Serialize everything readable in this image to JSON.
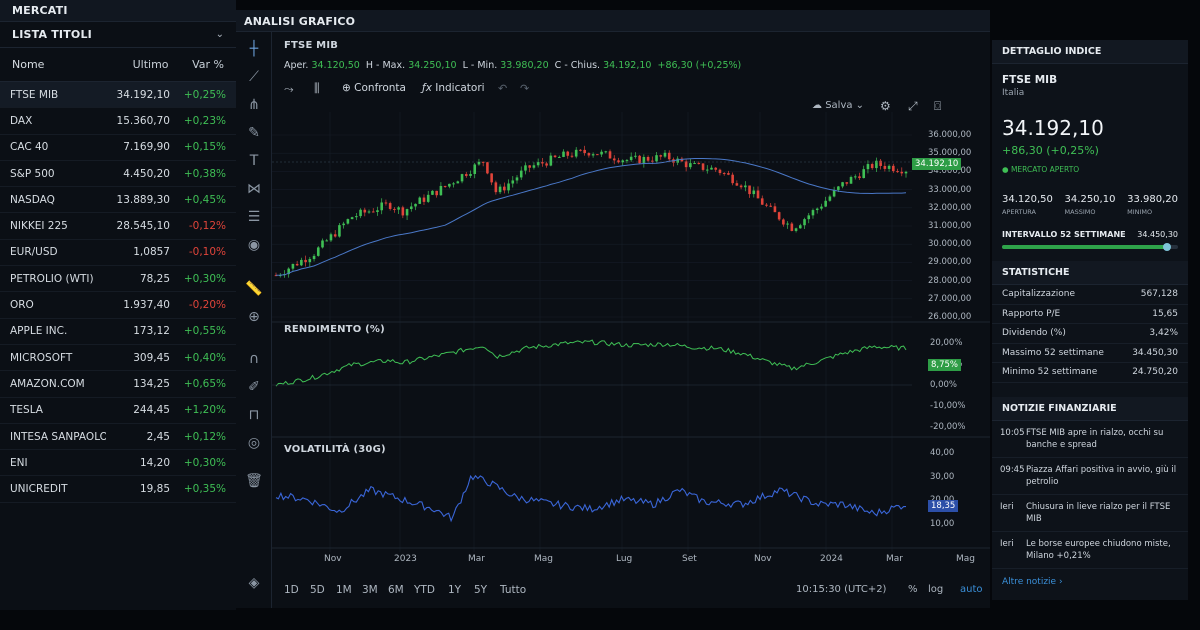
{
  "left": {
    "title": "MERCATI",
    "list_title": "LISTA TITOLI",
    "columns": [
      "Nome",
      "Ultimo",
      "Var %"
    ],
    "rows": [
      {
        "name": "FTSE MIB",
        "last": "34.192,10",
        "chg": "+0,25%",
        "dir": "pos"
      },
      {
        "name": "DAX",
        "last": "15.360,70",
        "chg": "+0,23%",
        "dir": "pos"
      },
      {
        "name": "CAC 40",
        "last": "7.169,90",
        "chg": "+0,15%",
        "dir": "pos"
      },
      {
        "name": "S&P 500",
        "last": "4.450,20",
        "chg": "+0,38%",
        "dir": "pos"
      },
      {
        "name": "NASDAQ",
        "last": "13.889,30",
        "chg": "+0,45%",
        "dir": "pos"
      },
      {
        "name": "NIKKEI 225",
        "last": "28.545,10",
        "chg": "-0,12%",
        "dir": "neg"
      },
      {
        "name": "EUR/USD",
        "last": "1,0857",
        "chg": "-0,10%",
        "dir": "neg"
      },
      {
        "name": "PETROLIO (WTI)",
        "last": "78,25",
        "chg": "+0,30%",
        "dir": "pos"
      },
      {
        "name": "ORO",
        "last": "1.937,40",
        "chg": "-0,20%",
        "dir": "neg"
      },
      {
        "name": "APPLE INC.",
        "last": "173,12",
        "chg": "+0,55%",
        "dir": "pos"
      },
      {
        "name": "MICROSOFT",
        "last": "309,45",
        "chg": "+0,40%",
        "dir": "pos"
      },
      {
        "name": "AMAZON.COM",
        "last": "134,25",
        "chg": "+0,65%",
        "dir": "pos"
      },
      {
        "name": "TESLA",
        "last": "244,45",
        "chg": "+1,20%",
        "dir": "pos"
      },
      {
        "name": "INTESA SANPAOLO",
        "last": "2,45",
        "chg": "+0,12%",
        "dir": "pos"
      },
      {
        "name": "ENI",
        "last": "14,20",
        "chg": "+0,30%",
        "dir": "pos"
      },
      {
        "name": "UNICREDIT",
        "last": "19,85",
        "chg": "+0,35%",
        "dir": "pos"
      }
    ]
  },
  "center": {
    "title": "ANALISI GRAFICO",
    "symbol": "FTSE MIB",
    "ohlc": {
      "open_label": "Aper.",
      "open": "34.120,50",
      "high_label": "H - Max.",
      "high": "34.250,10",
      "low_label": "L - Min.",
      "low": "33.980,20",
      "close_label": "C - Chius.",
      "close": "34.192,10",
      "change": "+86,30 (+0,25%)"
    },
    "toolbar": {
      "compare": "Confronta",
      "indicators": "Indicatori",
      "save": "Salva"
    },
    "price_axis": [
      "36.000,00",
      "35.000,00",
      "34.000,00",
      "33.000,00",
      "32.000,00",
      "31.000,00",
      "30.000,00",
      "29.000,00",
      "28.000,00",
      "27.000,00",
      "26.000,00"
    ],
    "price_tag": "34.192,10",
    "returns_title": "RENDIMENTO (%)",
    "returns_axis": [
      "20,00%",
      "10,00%",
      "0,00%",
      "-10,00%",
      "-20,00%"
    ],
    "returns_tag": "8,75%",
    "vol_title": "VOLATILITÀ (30G)",
    "vol_axis": [
      "40,00",
      "30,00",
      "20,00",
      "10,00"
    ],
    "vol_tag": "18,35",
    "x_axis": [
      "Nov",
      "2023",
      "Mar",
      "Mag",
      "Lug",
      "Set",
      "Nov",
      "2024",
      "Mar",
      "Mag"
    ],
    "ranges": [
      "1D",
      "5D",
      "1M",
      "3M",
      "6M",
      "YTD",
      "1Y",
      "5Y",
      "Tutto"
    ],
    "clock": "10:15:30 (UTC+2)",
    "scale_opts": [
      "%",
      "log",
      "auto"
    ]
  },
  "right": {
    "title": "DETTAGLIO INDICE",
    "name": "FTSE MIB",
    "country": "Italia",
    "price": "34.192,10",
    "change": "+86,30 (+0,25%)",
    "status": "MERCATO APERTO",
    "stats3": [
      {
        "value": "34.120,50",
        "label": "APERTURA"
      },
      {
        "value": "34.250,10",
        "label": "MASSIMO"
      },
      {
        "value": "33.980,20",
        "label": "MINIMO"
      }
    ],
    "range_label": "INTERVALLO 52 SETTIMANE",
    "range_value": "34.450,30",
    "range_pos": 0.94,
    "stats_title": "STATISTICHE",
    "stats": [
      {
        "k": "Capitalizzazione",
        "v": "567,128"
      },
      {
        "k": "Rapporto P/E",
        "v": "15,65"
      },
      {
        "k": "Dividendo (%)",
        "v": "3,42%"
      },
      {
        "k": "Massimo 52 settimane",
        "v": "34.450,30"
      },
      {
        "k": "Minimo 52 settimane",
        "v": "24.750,20"
      }
    ],
    "news_title": "NOTIZIE FINANZIARIE",
    "news": [
      {
        "t": "10:05",
        "h": "FTSE MIB apre in rialzo, occhi su banche e spread"
      },
      {
        "t": "09:45",
        "h": "Piazza Affari positiva in avvio, giù il petrolio"
      },
      {
        "t": "Ieri",
        "h": "Chiusura in lieve rialzo per il FTSE MIB"
      },
      {
        "t": "Ieri",
        "h": "Le borse europee chiudono miste, Milano +0,21%"
      }
    ],
    "more": "Altre notizie"
  },
  "colors": {
    "up": "#3fbf55",
    "down": "#e0443a",
    "ma": "#4a78c8",
    "vol": "#3a66d8",
    "accent": "#3a8fd8"
  }
}
